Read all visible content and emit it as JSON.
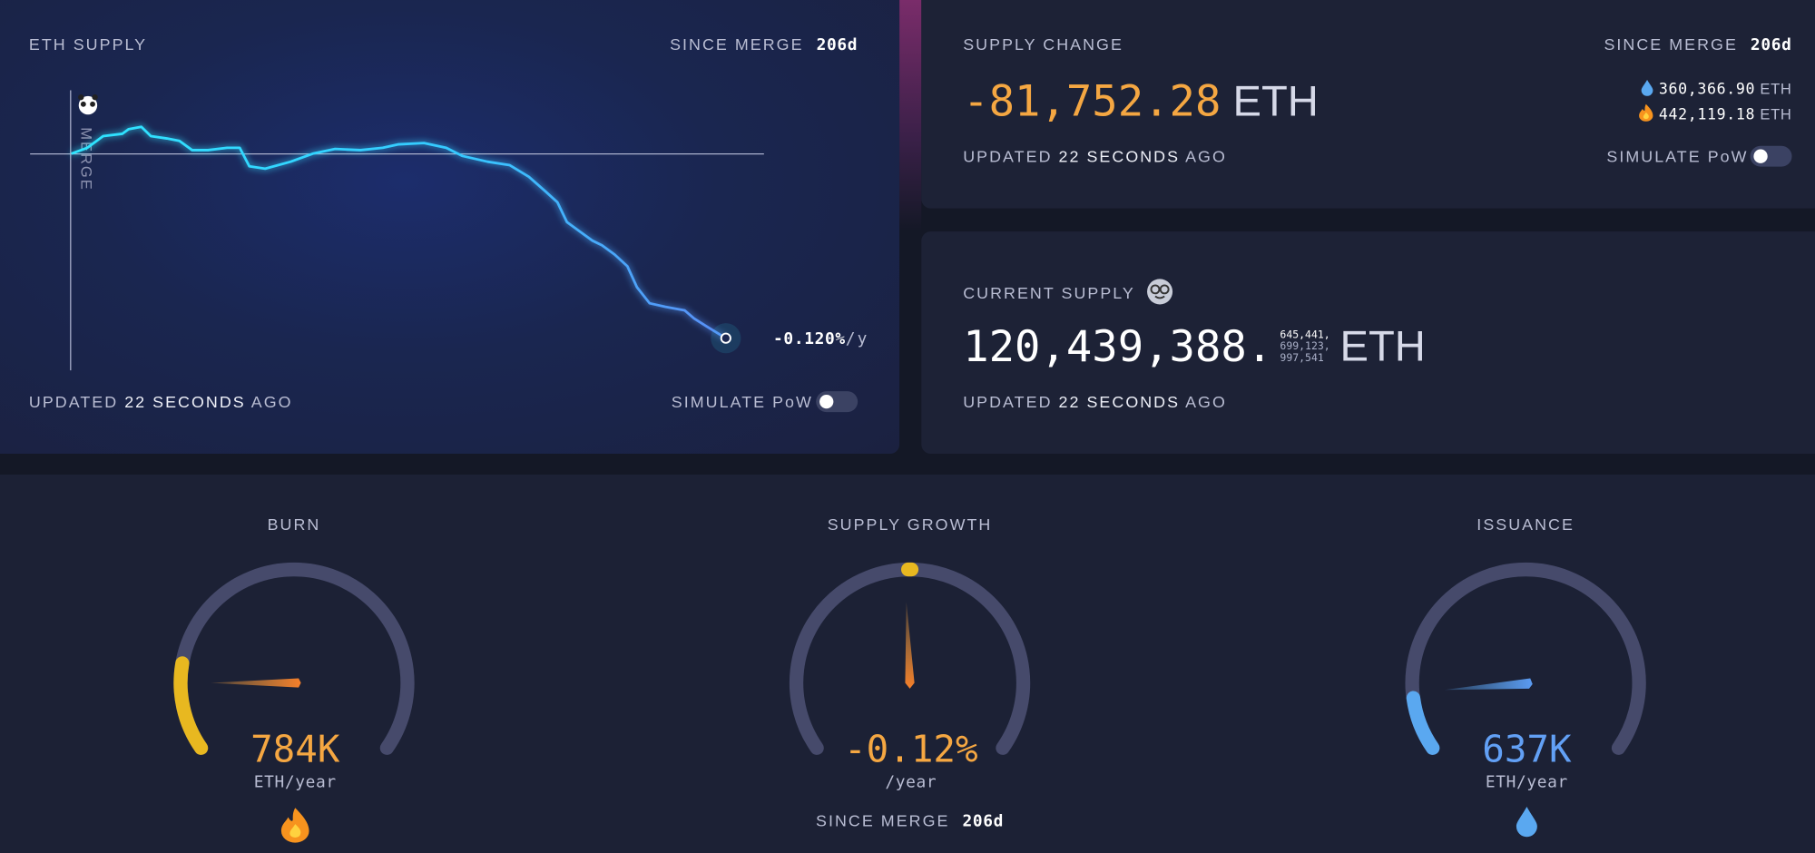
{
  "eth_supply": {
    "title": "ETH SUPPLY",
    "since_label": "SINCE MERGE",
    "since_value": "206d",
    "merge_label": "MERGE",
    "rate": "-0.120%",
    "rate_unit": "/y",
    "updated_prefix": "UPDATED",
    "updated_time": "22 SECONDS",
    "updated_suffix": "AGO",
    "simulate_label": "SIMULATE PoW"
  },
  "chart_data": {
    "type": "line",
    "x": [
      0,
      5,
      10,
      16,
      18,
      22,
      25,
      30,
      34,
      38,
      43,
      49,
      53,
      56,
      61,
      69,
      76,
      83,
      91,
      98,
      103,
      111,
      118,
      123,
      131,
      138,
      144,
      149,
      153,
      156,
      160,
      164,
      167,
      171,
      175,
      178,
      182,
      187,
      193,
      196,
      200,
      206
    ],
    "values": [
      0,
      2570,
      7710,
      8740,
      10790,
      11820,
      7710,
      6680,
      5650,
      1540,
      1540,
      2570,
      2570,
      -5650,
      -6680,
      -3600,
      0,
      2060,
      1540,
      2570,
      4110,
      4630,
      2570,
      -1030,
      -3600,
      -5140,
      -10280,
      -16450,
      -21590,
      -30330,
      -34440,
      -38550,
      -40610,
      -44720,
      -49860,
      -59110,
      -66300,
      -67850,
      -69390,
      -72990,
      -76590,
      -81752
    ],
    "xlim": [
      -13,
      218
    ],
    "ylim": [
      -96000,
      27000
    ],
    "color": "#2ee6ff"
  },
  "supply_change": {
    "title": "SUPPLY CHANGE",
    "since_label": "SINCE MERGE",
    "since_value": "206d",
    "value": "-81,752.28",
    "unit": "ETH",
    "issued": "360,366.90",
    "issued_unit": "ETH",
    "burned": "442,119.18",
    "burned_unit": "ETH",
    "updated_prefix": "UPDATED",
    "updated_time": "22 SECONDS",
    "updated_suffix": "AGO",
    "simulate_label": "SIMULATE PoW"
  },
  "current_supply": {
    "title": "CURRENT SUPPLY",
    "value": "120,439,388.",
    "decimals": [
      "645,441,",
      "699,123,",
      "997,541"
    ],
    "unit": "ETH",
    "updated_prefix": "UPDATED",
    "updated_time": "22 SECONDS",
    "updated_suffix": "AGO"
  },
  "gauges": [
    {
      "title": "BURN",
      "value": "784K",
      "unit": "ETH/year"
    },
    {
      "title": "SUPPLY GROWTH",
      "value": "-0.12%",
      "unit": "/year",
      "since_label": "SINCE MERGE",
      "since_value": "206d"
    },
    {
      "title": "ISSUANCE",
      "value": "637K",
      "unit": "ETH/year"
    }
  ]
}
